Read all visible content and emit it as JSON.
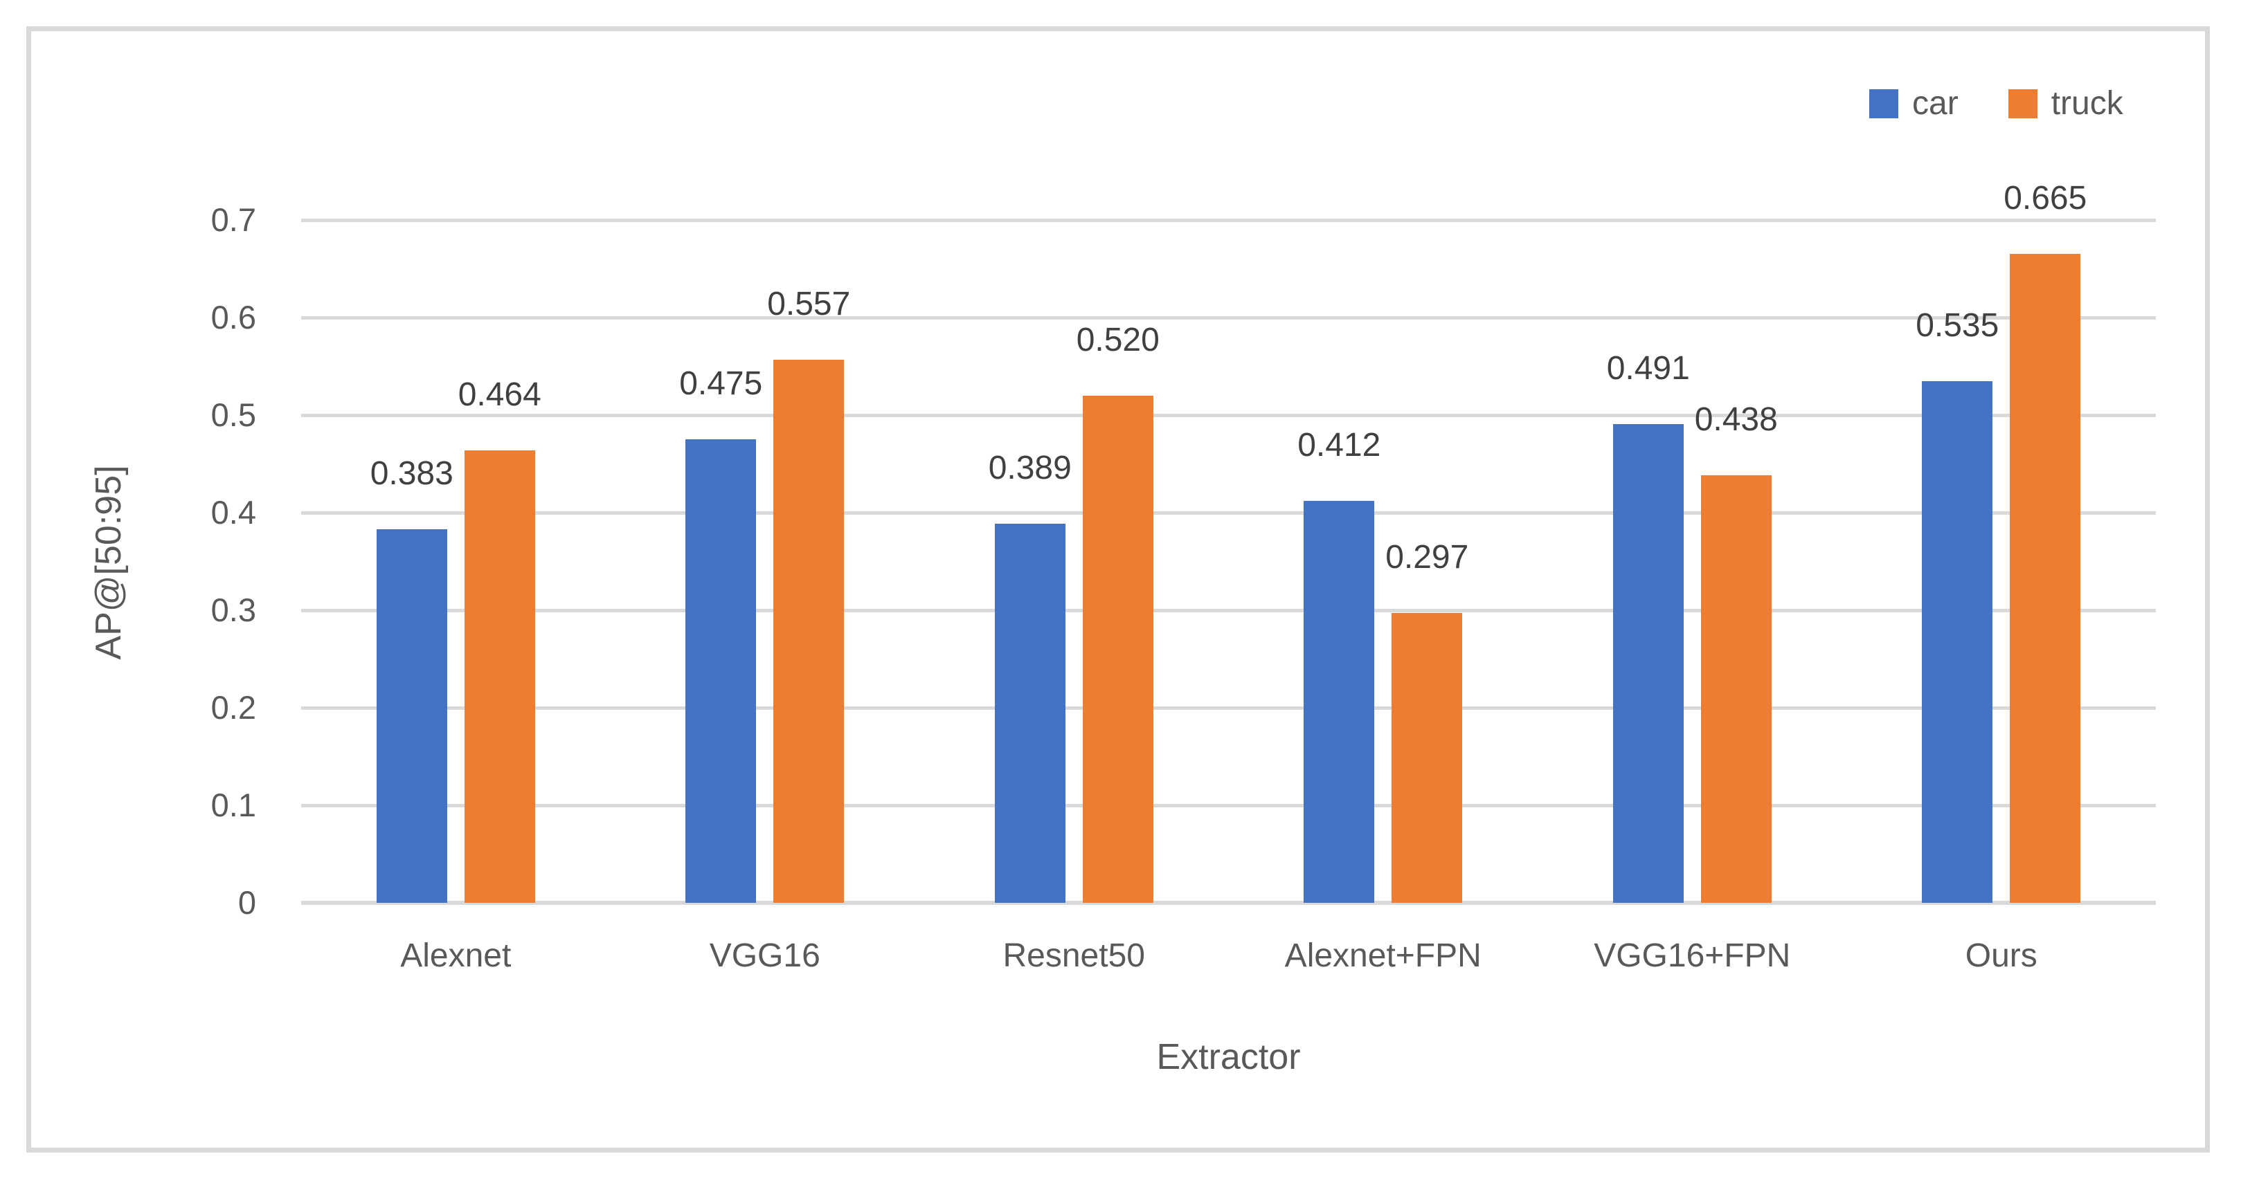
{
  "chart_data": {
    "type": "bar",
    "title": "",
    "xlabel": "Extractor",
    "ylabel": "AP@[50:95]",
    "ylim": [
      0,
      0.7
    ],
    "ytick_step": 0.1,
    "yticks": [
      "0",
      "0.1",
      "0.2",
      "0.3",
      "0.4",
      "0.5",
      "0.6",
      "0.7"
    ],
    "grid": true,
    "legend_position": "top-right",
    "categories": [
      "Alexnet",
      "VGG16",
      "Resnet50",
      "Alexnet+FPN",
      "VGG16+FPN",
      "Ours"
    ],
    "series": [
      {
        "name": "car",
        "color": "#4472C4",
        "values": [
          0.383,
          0.475,
          0.389,
          0.412,
          0.491,
          0.535
        ],
        "labels": [
          "0.383",
          "0.475",
          "0.389",
          "0.412",
          "0.491",
          "0.535"
        ]
      },
      {
        "name": "truck",
        "color": "#ED7D31",
        "values": [
          0.464,
          0.557,
          0.52,
          0.297,
          0.438,
          0.665
        ],
        "labels": [
          "0.464",
          "0.557",
          "0.520",
          "0.297",
          "0.438",
          "0.665"
        ]
      }
    ]
  },
  "colors": {
    "gridline": "#D9D9D9",
    "axis_line": "#D9D9D9",
    "border": "#D9D9D9",
    "axis_text": "#595959",
    "data_label_text": "#404040"
  }
}
